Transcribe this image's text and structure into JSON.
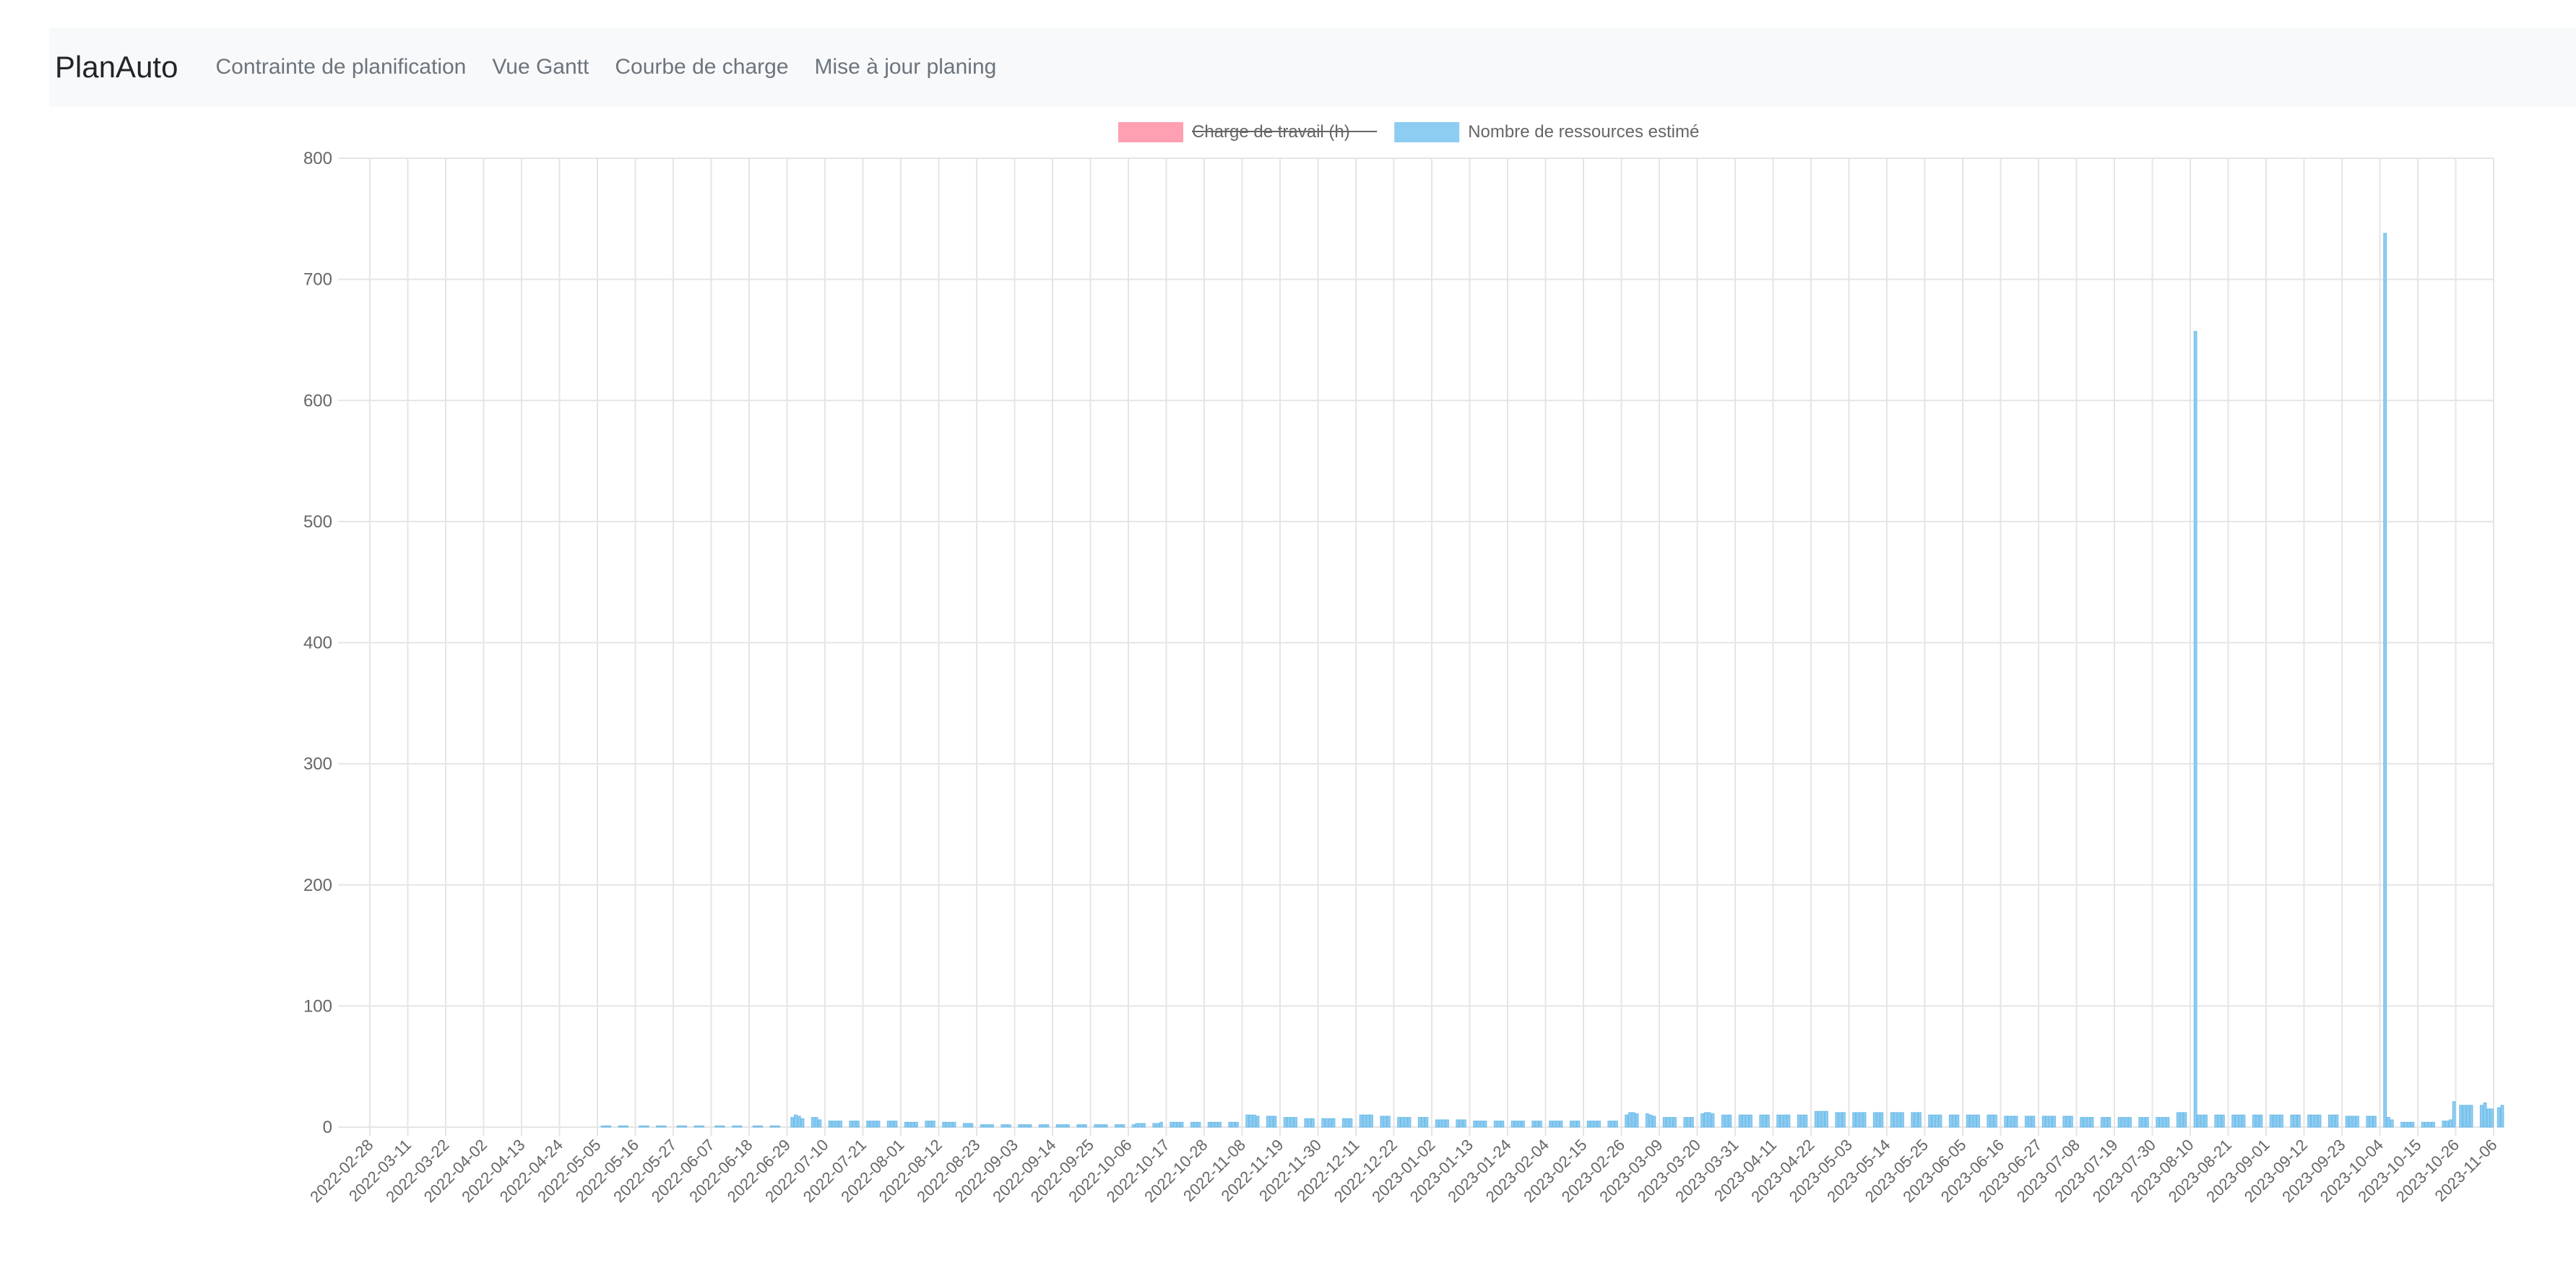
{
  "navbar": {
    "brand": "PlanAuto",
    "links": [
      "Contrainte de planification",
      "Vue Gantt",
      "Courbe de charge",
      "Mise à jour planing"
    ]
  },
  "chart_data": {
    "type": "bar",
    "legend": [
      {
        "label": "Charge de travail (h)",
        "color": "#ff9fb2",
        "hidden": true
      },
      {
        "label": "Nombre de ressources estimé",
        "color": "#8ecdf2",
        "hidden": false
      }
    ],
    "legend_position": "top",
    "grid": true,
    "ylim": [
      0,
      800
    ],
    "y_ticks": [
      0,
      100,
      200,
      300,
      400,
      500,
      600,
      700,
      800
    ],
    "x_tick_labels": [
      "2022-02-28",
      "2022-03-11",
      "2022-03-22",
      "2022-04-02",
      "2022-04-13",
      "2022-04-24",
      "2022-05-05",
      "2022-05-16",
      "2022-05-27",
      "2022-06-07",
      "2022-06-18",
      "2022-06-29",
      "2022-07-10",
      "2022-07-21",
      "2022-08-01",
      "2022-08-12",
      "2022-08-23",
      "2022-09-03",
      "2022-09-14",
      "2022-09-25",
      "2022-10-06",
      "2022-10-17",
      "2022-10-28",
      "2022-11-08",
      "2022-11-19",
      "2022-11-30",
      "2022-12-11",
      "2022-12-22",
      "2023-01-02",
      "2023-01-13",
      "2023-01-24",
      "2023-02-04",
      "2023-02-15",
      "2023-02-26",
      "2023-03-09",
      "2023-03-20",
      "2023-03-31",
      "2023-04-11",
      "2023-04-22",
      "2023-05-03",
      "2023-05-14",
      "2023-05-25",
      "2023-06-05",
      "2023-06-16",
      "2023-06-27",
      "2023-07-08",
      "2023-07-19",
      "2023-07-30",
      "2023-08-10",
      "2023-08-21",
      "2023-09-01",
      "2023-09-12",
      "2023-09-23",
      "2023-10-04",
      "2023-10-15",
      "2023-10-26",
      "2023-11-06"
    ],
    "series": [
      {
        "name": "Nombre de ressources estimé",
        "points_per_label": [
          [
            0,
            0,
            0,
            0,
            0,
            0,
            0,
            0,
            0,
            0,
            0
          ],
          [
            0,
            0,
            0,
            0,
            0,
            0,
            0,
            0,
            0,
            0,
            0
          ],
          [
            0,
            0,
            0,
            0,
            0,
            0,
            0,
            0,
            0,
            0,
            0
          ],
          [
            0,
            0,
            0,
            0,
            0,
            0,
            0,
            0,
            0,
            0,
            0
          ],
          [
            0,
            0,
            0,
            0,
            0,
            0,
            0,
            0,
            0,
            0,
            0
          ],
          [
            0,
            0,
            0,
            0,
            0,
            0,
            0,
            0,
            0,
            0,
            0
          ],
          [
            0,
            1,
            1,
            1,
            0,
            0,
            1,
            1,
            1,
            0,
            0
          ],
          [
            0,
            1,
            1,
            1,
            0,
            0,
            1,
            1,
            1,
            0,
            0
          ],
          [
            0,
            1,
            1,
            1,
            0,
            0,
            1,
            1,
            1,
            0,
            0
          ],
          [
            0,
            1,
            1,
            1,
            0,
            0,
            1,
            1,
            1,
            0,
            0
          ],
          [
            0,
            1,
            1,
            1,
            0,
            0,
            1,
            1,
            1,
            0,
            0
          ],
          [
            0,
            8,
            10,
            9,
            7,
            0,
            0,
            8,
            8,
            6,
            0
          ],
          [
            0,
            5,
            5,
            5,
            5,
            0,
            0,
            5,
            5,
            5,
            0
          ],
          [
            0,
            5,
            5,
            5,
            5,
            0,
            0,
            5,
            5,
            5,
            0
          ],
          [
            0,
            4,
            4,
            4,
            4,
            0,
            0,
            5,
            5,
            5,
            0
          ],
          [
            0,
            4,
            4,
            4,
            4,
            0,
            0,
            3,
            3,
            3,
            0
          ],
          [
            0,
            2,
            2,
            2,
            2,
            0,
            0,
            2,
            2,
            2,
            0
          ],
          [
            0,
            2,
            2,
            2,
            2,
            0,
            0,
            2,
            2,
            2,
            0
          ],
          [
            0,
            2,
            2,
            2,
            2,
            0,
            0,
            2,
            2,
            2,
            0
          ],
          [
            0,
            2,
            2,
            2,
            2,
            0,
            0,
            2,
            2,
            2,
            0
          ],
          [
            0,
            2,
            3,
            3,
            3,
            0,
            0,
            3,
            3,
            4,
            0
          ],
          [
            0,
            4,
            4,
            4,
            4,
            0,
            0,
            4,
            4,
            4,
            0
          ],
          [
            0,
            4,
            4,
            4,
            4,
            0,
            0,
            4,
            4,
            4,
            0
          ],
          [
            0,
            10,
            10,
            10,
            9,
            0,
            0,
            9,
            9,
            9,
            0
          ],
          [
            0,
            8,
            8,
            8,
            8,
            0,
            0,
            7,
            7,
            7,
            0
          ],
          [
            0,
            7,
            7,
            7,
            7,
            0,
            0,
            7,
            7,
            7,
            0
          ],
          [
            0,
            10,
            10,
            10,
            10,
            0,
            0,
            9,
            9,
            9,
            0
          ],
          [
            0,
            8,
            8,
            8,
            8,
            0,
            0,
            8,
            8,
            8,
            0
          ],
          [
            0,
            6,
            6,
            6,
            6,
            0,
            0,
            6,
            6,
            6,
            0
          ],
          [
            0,
            5,
            5,
            5,
            5,
            0,
            0,
            5,
            5,
            5,
            0
          ],
          [
            0,
            5,
            5,
            5,
            5,
            0,
            0,
            5,
            5,
            5,
            0
          ],
          [
            0,
            5,
            5,
            5,
            5,
            0,
            0,
            5,
            5,
            5,
            0
          ],
          [
            0,
            5,
            5,
            5,
            5,
            0,
            0,
            5,
            5,
            5,
            0
          ],
          [
            0,
            10,
            12,
            12,
            11,
            0,
            0,
            11,
            10,
            9,
            0
          ],
          [
            0,
            8,
            8,
            8,
            8,
            0,
            0,
            8,
            8,
            8,
            0
          ],
          [
            0,
            11,
            12,
            12,
            11,
            0,
            0,
            10,
            10,
            10,
            0
          ],
          [
            0,
            10,
            10,
            10,
            10,
            0,
            0,
            10,
            10,
            10,
            0
          ],
          [
            0,
            10,
            10,
            10,
            10,
            0,
            0,
            10,
            10,
            10,
            0
          ],
          [
            0,
            13,
            13,
            13,
            13,
            0,
            0,
            12,
            12,
            12,
            0
          ],
          [
            0,
            12,
            12,
            12,
            12,
            0,
            0,
            12,
            12,
            12,
            0
          ],
          [
            0,
            12,
            12,
            12,
            12,
            0,
            0,
            12,
            12,
            12,
            0
          ],
          [
            0,
            10,
            10,
            10,
            10,
            0,
            0,
            10,
            10,
            10,
            0
          ],
          [
            0,
            10,
            10,
            10,
            10,
            0,
            0,
            10,
            10,
            10,
            0
          ],
          [
            0,
            9,
            9,
            9,
            9,
            0,
            0,
            9,
            9,
            9,
            0
          ],
          [
            0,
            9,
            9,
            9,
            9,
            0,
            0,
            9,
            9,
            9,
            0
          ],
          [
            0,
            8,
            8,
            8,
            8,
            0,
            0,
            8,
            8,
            8,
            0
          ],
          [
            0,
            8,
            8,
            8,
            8,
            0,
            0,
            8,
            8,
            8,
            0
          ],
          [
            0,
            8,
            8,
            8,
            8,
            0,
            0,
            12,
            12,
            12,
            0
          ],
          [
            0,
            657,
            10,
            10,
            10,
            0,
            0,
            10,
            10,
            10,
            0
          ],
          [
            0,
            10,
            10,
            10,
            10,
            0,
            0,
            10,
            10,
            10,
            0
          ],
          [
            0,
            10,
            10,
            10,
            10,
            0,
            0,
            10,
            10,
            10,
            0
          ],
          [
            0,
            10,
            10,
            10,
            10,
            0,
            0,
            10,
            10,
            10,
            0
          ],
          [
            0,
            9,
            9,
            9,
            9,
            0,
            0,
            9,
            9,
            9,
            0
          ],
          [
            0,
            738,
            8,
            6,
            0,
            0,
            4,
            4,
            4,
            4,
            0
          ],
          [
            0,
            4,
            4,
            4,
            4,
            0,
            0,
            5,
            5,
            6,
            21
          ],
          [
            0,
            18,
            18,
            18,
            18,
            0,
            0,
            18,
            20,
            15,
            15
          ],
          [
            0,
            16,
            18,
            0,
            0,
            0,
            0,
            0,
            0,
            0,
            0
          ]
        ]
      }
    ]
  }
}
